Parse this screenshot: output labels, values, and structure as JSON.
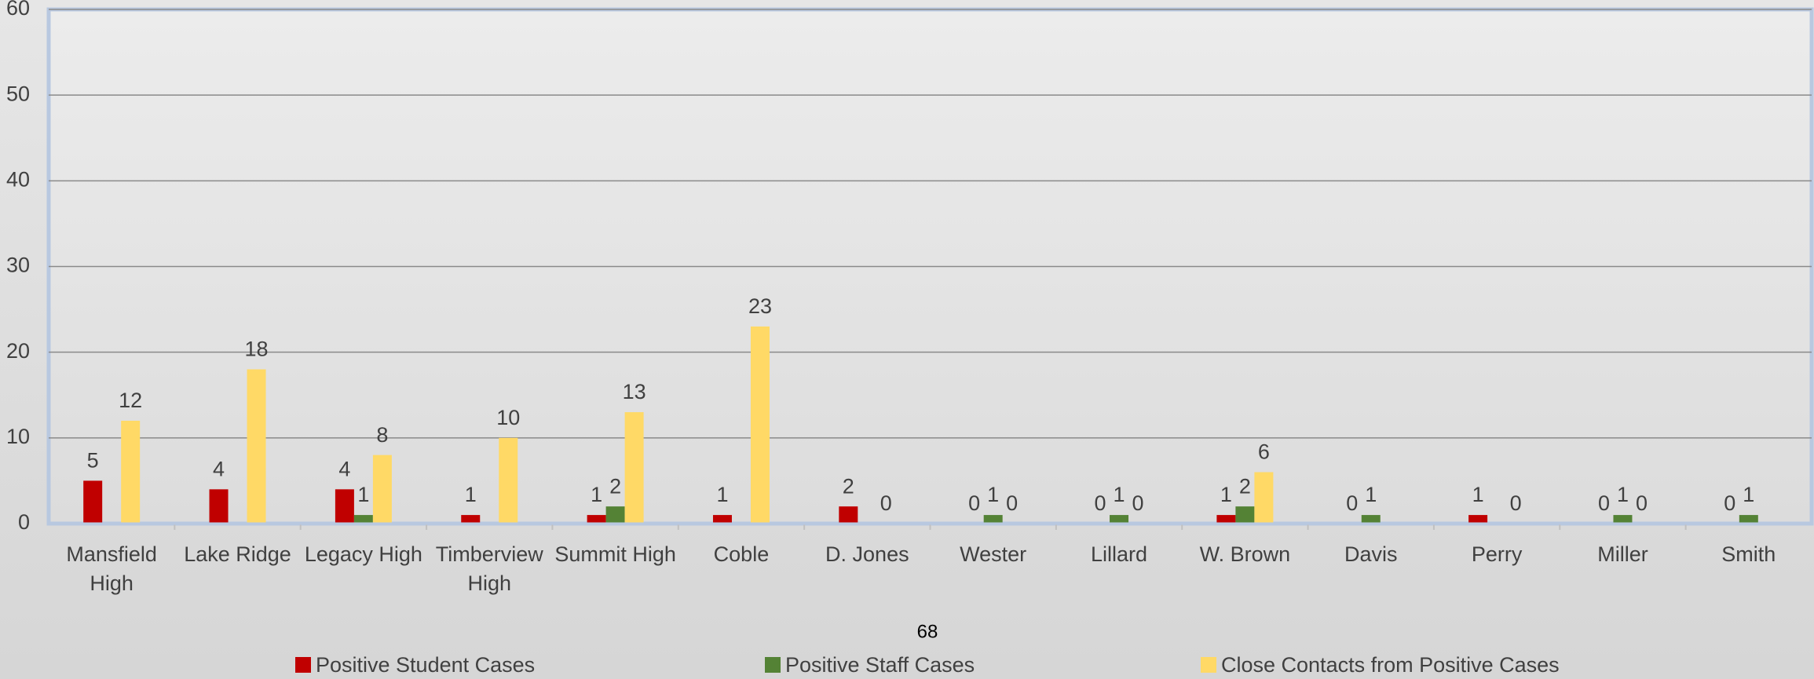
{
  "chart_data": {
    "type": "bar",
    "annotation": "68",
    "categories": [
      "Mansfield High",
      "Lake Ridge",
      "Legacy High",
      "Timberview High",
      "Summit High",
      "Coble",
      "D. Jones",
      "Wester",
      "Lillard",
      "W. Brown",
      "Davis",
      "Perry",
      "Miller",
      "Smith"
    ],
    "series": [
      {
        "name": "Positive Student Cases",
        "color": "#c00000",
        "values": [
          5,
          4,
          4,
          1,
          1,
          1,
          2,
          0,
          0,
          1,
          0,
          1,
          0,
          0
        ]
      },
      {
        "name": "Positive Staff Cases",
        "color": "#548235",
        "values": [
          null,
          null,
          1,
          null,
          2,
          null,
          null,
          1,
          1,
          2,
          1,
          null,
          1,
          1
        ]
      },
      {
        "name": "Close Contacts from Positive Cases",
        "color": "#ffd966",
        "values": [
          12,
          18,
          8,
          10,
          13,
          23,
          0,
          0,
          0,
          6,
          null,
          0,
          0,
          null
        ]
      }
    ],
    "ylim": [
      0,
      60
    ],
    "yticks": [
      0,
      10,
      20,
      30,
      40,
      50,
      60
    ],
    "grid": true,
    "legend": "bottom"
  }
}
